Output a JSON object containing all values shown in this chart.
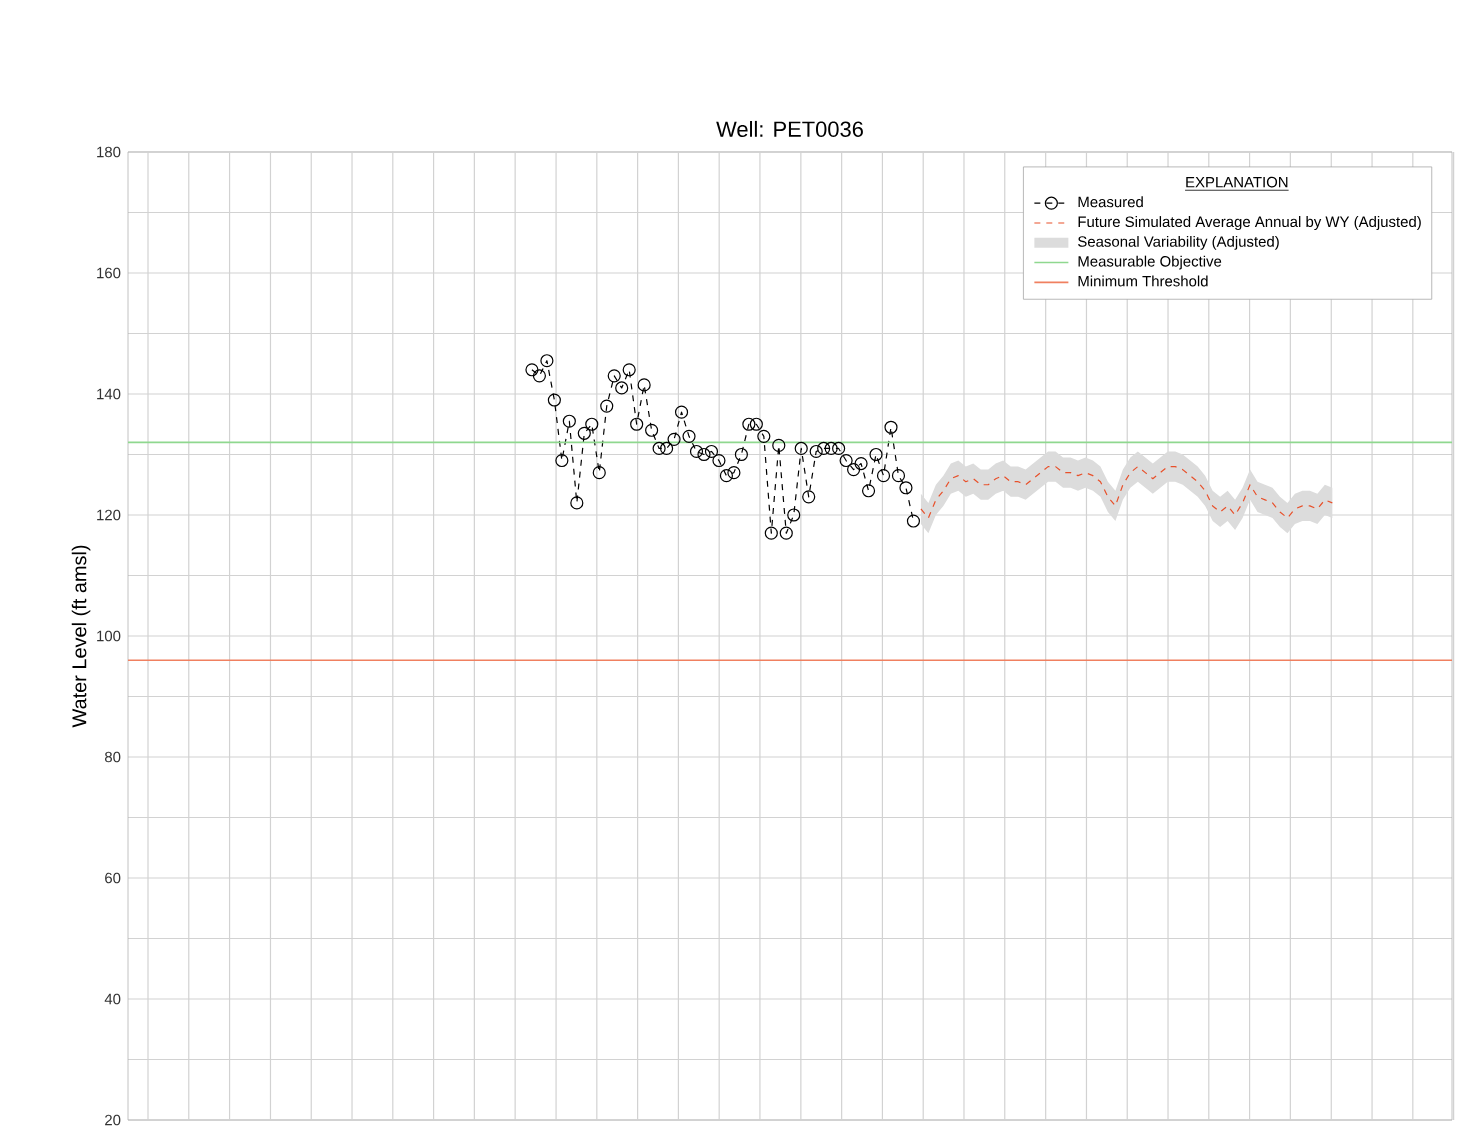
{
  "chart_data": {
    "type": "line",
    "title": "Well: PET0036",
    "ylabel": "Water Level (ft amsl)",
    "legend_title": "EXPLANATION",
    "legend": "top right",
    "grid": true,
    "tick_labels": "y",
    "annotations": [
      "Seasonal Variability (Adjusted)"
    ],
    "categories": [
      null,
      null,
      null,
      null,
      null,
      null,
      null,
      null,
      null,
      null,
      null,
      null,
      null,
      null,
      null,
      null,
      null,
      null,
      null,
      null,
      null,
      null,
      null,
      null,
      null,
      null,
      null,
      null,
      null,
      null,
      null,
      null,
      null,
      null,
      null,
      null,
      null,
      null,
      null,
      null,
      null,
      null,
      null,
      null,
      null,
      null,
      null,
      null,
      null,
      null,
      null,
      null,
      null,
      null,
      null,
      null,
      null,
      null,
      null,
      null,
      null,
      null,
      null,
      null,
      null,
      null,
      null,
      null,
      null,
      null,
      null,
      null,
      null,
      null,
      null,
      null,
      null,
      null,
      null,
      null,
      null,
      null,
      null,
      null,
      null,
      null,
      null,
      null,
      null,
      null,
      null,
      null,
      null,
      null,
      null,
      null,
      null,
      null,
      null,
      null,
      null,
      null,
      null,
      null,
      null,
      null,
      null,
      null,
      null,
      null,
      null,
      null,
      null,
      null,
      null,
      null,
      null,
      null,
      null,
      null,
      null,
      null,
      null,
      null,
      null,
      null,
      null,
      null,
      null,
      null,
      null,
      null,
      null,
      null,
      null,
      null,
      null,
      null,
      null,
      null,
      null,
      null,
      null,
      null,
      null,
      null,
      null,
      null,
      null,
      null,
      null,
      null,
      null,
      null,
      null,
      null,
      null,
      null,
      null,
      null,
      null,
      null,
      null,
      null,
      null,
      null,
      null,
      null,
      null,
      null,
      null,
      null,
      null,
      null,
      null,
      null,
      null,
      null
    ],
    "ylim": [
      20,
      180
    ],
    "yticks": [
      {
        "value": 20,
        "label": "20"
      },
      {
        "value": 30,
        "label": null
      },
      {
        "value": 40,
        "label": "40"
      },
      {
        "value": 50,
        "label": null
      },
      {
        "value": 60,
        "label": "60"
      },
      {
        "value": 70,
        "label": null
      },
      {
        "value": 80,
        "label": "80"
      },
      {
        "value": 90,
        "label": null
      },
      {
        "value": 100,
        "label": "100"
      },
      {
        "value": 110,
        "label": null
      },
      {
        "value": 120,
        "label": "120"
      },
      {
        "value": 130,
        "label": null
      },
      {
        "value": 140,
        "label": "140"
      },
      {
        "value": 150,
        "label": null
      },
      {
        "value": 160,
        "label": "160"
      },
      {
        "value": 170,
        "label": null
      },
      {
        "value": 180,
        "label": "180"
      }
    ],
    "series": [
      {
        "name": "Measured",
        "color": "#000000",
        "marker": "circle",
        "line_style": "dashed",
        "values": [
          null,
          null,
          null,
          null,
          null,
          null,
          null,
          null,
          null,
          null,
          null,
          null,
          null,
          null,
          null,
          null,
          null,
          null,
          null,
          null,
          null,
          null,
          null,
          null,
          null,
          null,
          null,
          null,
          null,
          null,
          null,
          null,
          null,
          null,
          null,
          null,
          null,
          null,
          null,
          null,
          null,
          null,
          null,
          null,
          null,
          null,
          null,
          null,
          null,
          null,
          null,
          null,
          null,
          null,
          144,
          143,
          145.5,
          139,
          129,
          135.5,
          122,
          133.5,
          135,
          127,
          138,
          143,
          141,
          144,
          135,
          141.5,
          134,
          131,
          131,
          132.5,
          137,
          133,
          130.5,
          130,
          130.5,
          129,
          126.5,
          127,
          130,
          135,
          135,
          133,
          117,
          131.5,
          117,
          120,
          131,
          123,
          130.5,
          131,
          131,
          131,
          129,
          127.5,
          128.5,
          124,
          130,
          126.5,
          134.5,
          126.5,
          124.5,
          119,
          null,
          null,
          null,
          null,
          null,
          null,
          null,
          null,
          null,
          null,
          null,
          null,
          null,
          null,
          null,
          null,
          null,
          null,
          null,
          null,
          null,
          null,
          null,
          null,
          null,
          null,
          null,
          null,
          null,
          null,
          null,
          null,
          null,
          null,
          null,
          null,
          null,
          null,
          null,
          null,
          null,
          null,
          null,
          null,
          null,
          null,
          null,
          null,
          null,
          null,
          null,
          null,
          null,
          null,
          null,
          null,
          null,
          null,
          null,
          null,
          null,
          null,
          null,
          null,
          null,
          null,
          null,
          null,
          null,
          null,
          null,
          null
        ]
      },
      {
        "name": "Future Simulated Average Annual by WY (Adjusted)",
        "color": "#e8502a",
        "line_style": "dashed",
        "values": [
          null,
          null,
          null,
          null,
          null,
          null,
          null,
          null,
          null,
          null,
          null,
          null,
          null,
          null,
          null,
          null,
          null,
          null,
          null,
          null,
          null,
          null,
          null,
          null,
          null,
          null,
          null,
          null,
          null,
          null,
          null,
          null,
          null,
          null,
          null,
          null,
          null,
          null,
          null,
          null,
          null,
          null,
          null,
          null,
          null,
          null,
          null,
          null,
          null,
          null,
          null,
          null,
          null,
          null,
          null,
          null,
          null,
          null,
          null,
          null,
          null,
          null,
          null,
          null,
          null,
          null,
          null,
          null,
          null,
          null,
          null,
          null,
          null,
          null,
          null,
          null,
          null,
          null,
          null,
          null,
          null,
          null,
          null,
          null,
          null,
          null,
          null,
          null,
          null,
          null,
          null,
          null,
          null,
          null,
          null,
          null,
          null,
          null,
          null,
          null,
          null,
          null,
          null,
          null,
          null,
          null,
          121,
          119.5,
          122.5,
          124,
          126,
          126.5,
          125.5,
          126,
          125,
          125,
          126,
          126.5,
          125.5,
          125.5,
          125,
          126,
          127,
          128,
          128,
          127,
          127,
          126.5,
          127,
          126.5,
          125.5,
          123,
          121.5,
          125,
          127,
          128,
          127,
          126,
          127,
          128,
          128,
          127.5,
          126.5,
          125.5,
          124,
          121.5,
          120.5,
          121.5,
          120,
          122,
          125,
          123,
          122.5,
          122,
          120.5,
          119.5,
          121,
          121.5,
          121.5,
          121,
          122.5,
          122,
          null,
          null,
          null,
          null,
          null,
          null,
          null,
          null,
          null,
          null,
          null,
          null,
          null,
          null,
          null,
          null
        ],
        "lower": [
          null,
          null,
          null,
          null,
          null,
          null,
          null,
          null,
          null,
          null,
          null,
          null,
          null,
          null,
          null,
          null,
          null,
          null,
          null,
          null,
          null,
          null,
          null,
          null,
          null,
          null,
          null,
          null,
          null,
          null,
          null,
          null,
          null,
          null,
          null,
          null,
          null,
          null,
          null,
          null,
          null,
          null,
          null,
          null,
          null,
          null,
          null,
          null,
          null,
          null,
          null,
          null,
          null,
          null,
          null,
          null,
          null,
          null,
          null,
          null,
          null,
          null,
          null,
          null,
          null,
          null,
          null,
          null,
          null,
          null,
          null,
          null,
          null,
          null,
          null,
          null,
          null,
          null,
          null,
          null,
          null,
          null,
          null,
          null,
          null,
          null,
          null,
          null,
          null,
          null,
          null,
          null,
          null,
          null,
          null,
          null,
          null,
          null,
          null,
          null,
          null,
          null,
          null,
          null,
          null,
          null,
          118.5,
          117,
          120,
          121.5,
          123.5,
          124,
          123,
          123.5,
          122.5,
          122.5,
          123.5,
          124,
          123,
          123,
          122.5,
          123.5,
          124.5,
          125.5,
          125.5,
          124.5,
          124.5,
          124,
          124.5,
          124,
          123,
          120.5,
          119,
          122.5,
          124.5,
          125.5,
          124.5,
          123.5,
          124.5,
          125.5,
          125.5,
          125,
          124,
          123,
          121.5,
          119,
          118,
          119,
          117.5,
          119.5,
          122.5,
          120.5,
          120,
          119.5,
          118,
          117,
          118.5,
          119,
          119,
          118.5,
          120,
          119.5,
          null,
          null,
          null,
          null,
          null,
          null,
          null,
          null,
          null,
          null,
          null,
          null,
          null,
          null,
          null,
          null
        ],
        "upper": [
          null,
          null,
          null,
          null,
          null,
          null,
          null,
          null,
          null,
          null,
          null,
          null,
          null,
          null,
          null,
          null,
          null,
          null,
          null,
          null,
          null,
          null,
          null,
          null,
          null,
          null,
          null,
          null,
          null,
          null,
          null,
          null,
          null,
          null,
          null,
          null,
          null,
          null,
          null,
          null,
          null,
          null,
          null,
          null,
          null,
          null,
          null,
          null,
          null,
          null,
          null,
          null,
          null,
          null,
          null,
          null,
          null,
          null,
          null,
          null,
          null,
          null,
          null,
          null,
          null,
          null,
          null,
          null,
          null,
          null,
          null,
          null,
          null,
          null,
          null,
          null,
          null,
          null,
          null,
          null,
          null,
          null,
          null,
          null,
          null,
          null,
          null,
          null,
          null,
          null,
          null,
          null,
          null,
          null,
          null,
          null,
          null,
          null,
          null,
          null,
          null,
          null,
          null,
          null,
          null,
          null,
          123.5,
          122,
          125,
          126.5,
          128.5,
          129,
          128,
          128.5,
          127.5,
          127.5,
          128.5,
          129,
          128,
          128,
          127.5,
          128.5,
          129.5,
          130.5,
          130.5,
          129.5,
          129.5,
          129,
          129.5,
          129,
          128,
          125.5,
          124,
          127.5,
          129.5,
          130.5,
          129.5,
          128.5,
          129.5,
          130.5,
          130.5,
          130,
          129,
          128,
          126.5,
          124,
          123,
          124,
          122.5,
          124.5,
          127.5,
          125.5,
          125,
          124.5,
          123,
          122,
          123.5,
          124,
          124,
          123.5,
          125,
          124.5,
          null,
          null,
          null,
          null,
          null,
          null,
          null,
          null,
          null,
          null,
          null,
          null,
          null,
          null,
          null,
          null
        ]
      }
    ],
    "ref_lines": [
      {
        "axis": "y",
        "value": 132,
        "label": "Measurable Objective",
        "color": "#8fd88f",
        "line_style": "solid"
      },
      {
        "axis": "y",
        "value": 96,
        "label": "Minimum Threshold",
        "color": "#f08060",
        "line_style": "solid"
      }
    ]
  }
}
